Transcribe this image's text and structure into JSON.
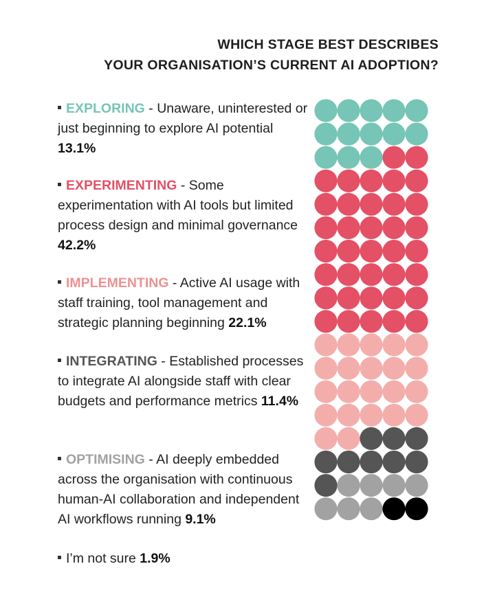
{
  "title": {
    "line1": "WHICH STAGE BEST DESCRIBES",
    "line2": "YOUR ORGANISATION’S CURRENT AI ADOPTION?"
  },
  "colors": {
    "exploring": "#76c5b6",
    "experimenting": "#e45065",
    "implementing": "#f3aeac",
    "integrating": "#555555",
    "optimising": "#a2a2a2",
    "not_sure": "#000000"
  },
  "chart_data": {
    "type": "waffle",
    "title": "WHICH STAGE BEST DESCRIBES YOUR ORGANISATION’S CURRENT AI ADOPTION?",
    "total_cells": 90,
    "columns": 5,
    "series": [
      {
        "key": "exploring",
        "name": "EXPLORING",
        "description": " - Unaware, uninterested or just beginning to explore AI potential ",
        "value_label": "13.1%",
        "value": 13.1,
        "cells": 13,
        "color": "#76c5b6"
      },
      {
        "key": "experimenting",
        "name": "EXPERIMENTING",
        "description": " - Some experimentation with AI tools but limited process design and minimal governance ",
        "value_label": "42.2%",
        "value": 42.2,
        "cells": 37,
        "color": "#e45065"
      },
      {
        "key": "implementing",
        "name": "IMPLEMENTING",
        "description": " - Active AI usage with staff training, tool management and strategic planning beginning ",
        "value_label": "22.1%",
        "value": 22.1,
        "cells": 22,
        "color": "#f3aeac"
      },
      {
        "key": "integrating",
        "name": "INTEGRATING",
        "description": " - Established processes to integrate AI alongside staff with clear budgets and performance metrics ",
        "value_label": "11.4%",
        "value": 11.4,
        "cells": 9,
        "color": "#555555"
      },
      {
        "key": "optimising",
        "name": "OPTIMISING",
        "description": " - AI deeply embedded across the organisation with continuous human-AI collaboration and independent AI workflows running ",
        "value_label": "9.1%",
        "value": 9.1,
        "cells": 7,
        "color": "#a2a2a2"
      },
      {
        "key": "not_sure",
        "name": "",
        "description": "I’m not sure ",
        "value_label": "1.9%",
        "value": 1.9,
        "cells": 2,
        "color": "#000000"
      }
    ]
  }
}
